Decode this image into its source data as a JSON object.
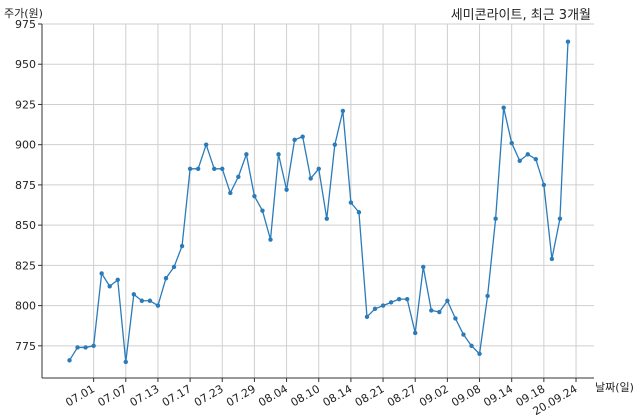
{
  "chart_data": {
    "type": "line",
    "title": "세미콘라이트, 최근 3개월",
    "xlabel": "날짜(일)",
    "ylabel": "주가(원)",
    "ylim": [
      755,
      975
    ],
    "yticks": [
      775,
      800,
      825,
      850,
      875,
      900,
      925,
      950,
      975
    ],
    "grid": true,
    "legend": "none",
    "color": "#2b7bb9",
    "x_tick_labels": [
      {
        "at": 3,
        "label": "07.01"
      },
      {
        "at": 7,
        "label": "07.07"
      },
      {
        "at": 11,
        "label": "07.13"
      },
      {
        "at": 15,
        "label": "07.17"
      },
      {
        "at": 19,
        "label": "07.23"
      },
      {
        "at": 23,
        "label": "07.29"
      },
      {
        "at": 27,
        "label": "08.04"
      },
      {
        "at": 31,
        "label": "08.10"
      },
      {
        "at": 35,
        "label": "08.14"
      },
      {
        "at": 39,
        "label": "08.21"
      },
      {
        "at": 43,
        "label": "08.27"
      },
      {
        "at": 47,
        "label": "09.02"
      },
      {
        "at": 51,
        "label": "09.08"
      },
      {
        "at": 55,
        "label": "09.14"
      },
      {
        "at": 59,
        "label": "09.18"
      },
      {
        "at": 63,
        "label": "20.09.24"
      }
    ],
    "series": [
      {
        "name": "",
        "values": [
          766,
          774,
          774,
          775,
          820,
          812,
          816,
          765,
          807,
          803,
          803,
          800,
          817,
          824,
          837,
          885,
          885,
          900,
          885,
          885,
          870,
          880,
          894,
          868,
          859,
          841,
          894,
          872,
          903,
          905,
          879,
          885,
          854,
          900,
          921,
          864,
          858,
          793,
          798,
          800,
          802,
          804,
          804,
          783,
          824,
          797,
          796,
          803,
          792,
          782,
          775,
          770,
          806,
          854,
          923,
          901,
          890,
          894,
          891,
          875,
          829,
          854,
          964
        ]
      }
    ]
  }
}
